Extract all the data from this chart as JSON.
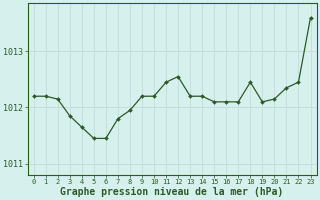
{
  "x": [
    0,
    1,
    2,
    3,
    4,
    5,
    6,
    7,
    8,
    9,
    10,
    11,
    12,
    13,
    14,
    15,
    16,
    17,
    18,
    19,
    20,
    21,
    22,
    23
  ],
  "y": [
    1012.2,
    1012.2,
    1012.15,
    1011.85,
    1011.65,
    1011.45,
    1011.45,
    1011.8,
    1011.95,
    1012.2,
    1012.2,
    1012.45,
    1012.55,
    1012.2,
    1012.2,
    1012.1,
    1012.1,
    1012.1,
    1012.45,
    1012.1,
    1012.15,
    1012.35,
    1012.45,
    1013.6
  ],
  "line_color": "#2d5a27",
  "marker_color": "#2d5a27",
  "bg_color": "#d6f0ee",
  "grid_color": "#c8dedd",
  "xlabel": "Graphe pression niveau de la mer (hPa)",
  "yticks": [
    1011,
    1012,
    1013
  ],
  "xlim": [
    -0.5,
    23.5
  ],
  "ylim": [
    1010.8,
    1013.85
  ],
  "xlabel_color": "#2d5a27",
  "tick_color": "#2d5a27",
  "axis_color": "#2d5a27",
  "ylabel_fontsize": 6,
  "xlabel_fontsize": 7,
  "xtick_fontsize": 5,
  "ytick_fontsize": 6
}
